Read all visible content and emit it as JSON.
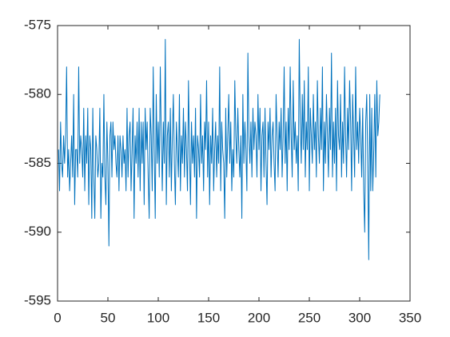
{
  "chart_data": {
    "type": "line",
    "x": [
      1,
      2,
      3,
      4,
      5,
      6,
      7,
      8,
      9,
      10,
      11,
      12,
      13,
      14,
      15,
      16,
      17,
      18,
      19,
      20,
      21,
      22,
      23,
      24,
      25,
      26,
      27,
      28,
      29,
      30,
      31,
      32,
      33,
      34,
      35,
      36,
      37,
      38,
      39,
      40,
      41,
      42,
      43,
      44,
      45,
      46,
      47,
      48,
      49,
      50,
      51,
      52,
      53,
      54,
      55,
      56,
      57,
      58,
      59,
      60,
      61,
      62,
      63,
      64,
      65,
      66,
      67,
      68,
      69,
      70,
      71,
      72,
      73,
      74,
      75,
      76,
      77,
      78,
      79,
      80,
      81,
      82,
      83,
      84,
      85,
      86,
      87,
      88,
      89,
      90,
      91,
      92,
      93,
      94,
      95,
      96,
      97,
      98,
      99,
      100,
      101,
      102,
      103,
      104,
      105,
      106,
      107,
      108,
      109,
      110,
      111,
      112,
      113,
      114,
      115,
      116,
      117,
      118,
      119,
      120,
      121,
      122,
      123,
      124,
      125,
      126,
      127,
      128,
      129,
      130,
      131,
      132,
      133,
      134,
      135,
      136,
      137,
      138,
      139,
      140,
      141,
      142,
      143,
      144,
      145,
      146,
      147,
      148,
      149,
      150,
      151,
      152,
      153,
      154,
      155,
      156,
      157,
      158,
      159,
      160,
      161,
      162,
      163,
      164,
      165,
      166,
      167,
      168,
      169,
      170,
      171,
      172,
      173,
      174,
      175,
      176,
      177,
      178,
      179,
      180,
      181,
      182,
      183,
      184,
      185,
      186,
      187,
      188,
      189,
      190,
      191,
      192,
      193,
      194,
      195,
      196,
      197,
      198,
      199,
      200,
      201,
      202,
      203,
      204,
      205,
      206,
      207,
      208,
      209,
      210,
      211,
      212,
      213,
      214,
      215,
      216,
      217,
      218,
      219,
      220,
      221,
      222,
      223,
      224,
      225,
      226,
      227,
      228,
      229,
      230,
      231,
      232,
      233,
      234,
      235,
      236,
      237,
      238,
      239,
      240,
      241,
      242,
      243,
      244,
      245,
      246,
      247,
      248,
      249,
      250,
      251,
      252,
      253,
      254,
      255,
      256,
      257,
      258,
      259,
      260,
      261,
      262,
      263,
      264,
      265,
      266,
      267,
      268,
      269,
      270,
      271,
      272,
      273,
      274,
      275,
      276,
      277,
      278,
      279,
      280,
      281,
      282,
      283,
      284,
      285,
      286,
      287,
      288,
      289,
      290,
      291,
      292,
      293,
      294,
      295,
      296,
      297,
      298,
      299,
      300,
      301,
      302,
      303,
      304,
      305,
      306,
      307,
      308,
      309,
      310,
      311,
      312,
      313,
      314,
      315,
      316,
      317,
      318,
      319,
      320
    ],
    "series": [
      {
        "color": "#0072bd",
        "values": [
          -584,
          -587,
          -582,
          -585,
          -586,
          -583,
          -585,
          -583,
          -578,
          -586,
          -584,
          -587,
          -585,
          -583,
          -586,
          -580,
          -588,
          -584,
          -584,
          -586,
          -578,
          -585,
          -583,
          -584,
          -586,
          -581,
          -587,
          -583,
          -585,
          -581,
          -588,
          -583,
          -584,
          -589,
          -581,
          -586,
          -589,
          -583,
          -584,
          -586,
          -585,
          -581,
          -589,
          -585,
          -586,
          -580,
          -586,
          -588,
          -582,
          -585,
          -591,
          -583,
          -582,
          -586,
          -582,
          -584,
          -583,
          -585,
          -586,
          -583,
          -587,
          -583,
          -584,
          -586,
          -583,
          -585,
          -584,
          -587,
          -581,
          -586,
          -583,
          -582,
          -587,
          -584,
          -581,
          -589,
          -583,
          -585,
          -582,
          -586,
          -581,
          -587,
          -582,
          -585,
          -582,
          -588,
          -581,
          -584,
          -582,
          -586,
          -589,
          -581,
          -583,
          -587,
          -578,
          -584,
          -589,
          -580,
          -585,
          -582,
          -586,
          -578,
          -583,
          -587,
          -582,
          -585,
          -576,
          -588,
          -583,
          -582,
          -586,
          -581,
          -587,
          -583,
          -580,
          -585,
          -588,
          -582,
          -584,
          -586,
          -580,
          -587,
          -583,
          -585,
          -581,
          -586,
          -582,
          -584,
          -587,
          -579,
          -584,
          -588,
          -582,
          -585,
          -583,
          -586,
          -581,
          -589,
          -583,
          -584,
          -586,
          -580,
          -585,
          -583,
          -587,
          -582,
          -584,
          -579,
          -586,
          -582,
          -588,
          -583,
          -585,
          -581,
          -587,
          -584,
          -582,
          -586,
          -583,
          -585,
          -578,
          -587,
          -582,
          -584,
          -585,
          -589,
          -581,
          -586,
          -583,
          -580,
          -585,
          -582,
          -587,
          -584,
          -586,
          -579,
          -583,
          -585,
          -581,
          -584,
          -586,
          -583,
          -589,
          -580,
          -585,
          -582,
          -584,
          -587,
          -577,
          -583,
          -585,
          -582,
          -586,
          -581,
          -584,
          -582,
          -583,
          -586,
          -580,
          -584,
          -581,
          -587,
          -583,
          -582,
          -586,
          -581,
          -585,
          -588,
          -582,
          -584,
          -581,
          -586,
          -583,
          -582,
          -585,
          -587,
          -580,
          -583,
          -586,
          -582,
          -584,
          -581,
          -586,
          -583,
          -578,
          -585,
          -582,
          -587,
          -581,
          -584,
          -578,
          -583,
          -586,
          -579,
          -584,
          -582,
          -585,
          -583,
          -587,
          -576,
          -582,
          -585,
          -580,
          -584,
          -579,
          -586,
          -582,
          -584,
          -578,
          -587,
          -581,
          -583,
          -585,
          -580,
          -584,
          -582,
          -586,
          -579,
          -583,
          -585,
          -581,
          -584,
          -578,
          -587,
          -582,
          -585,
          -580,
          -583,
          -586,
          -581,
          -584,
          -577,
          -586,
          -582,
          -585,
          -581,
          -587,
          -579,
          -583,
          -584,
          -580,
          -586,
          -582,
          -585,
          -578,
          -583,
          -586,
          -581,
          -584,
          -579,
          -582,
          -587,
          -580,
          -583,
          -586,
          -578,
          -584,
          -582,
          -585,
          -581,
          -583,
          -586,
          -581,
          -587,
          -590,
          -582,
          -580,
          -585,
          -592,
          -580,
          -587,
          -581,
          -587,
          -584,
          -580,
          -586,
          -579,
          -583,
          -582,
          -580
        ]
      }
    ],
    "xlim": [
      0,
      350
    ],
    "xticks": [
      0,
      50,
      100,
      150,
      200,
      250,
      300,
      350
    ],
    "ylim": [
      -595,
      -575
    ],
    "yticks": [
      -595,
      -590,
      -585,
      -580,
      -575
    ]
  }
}
